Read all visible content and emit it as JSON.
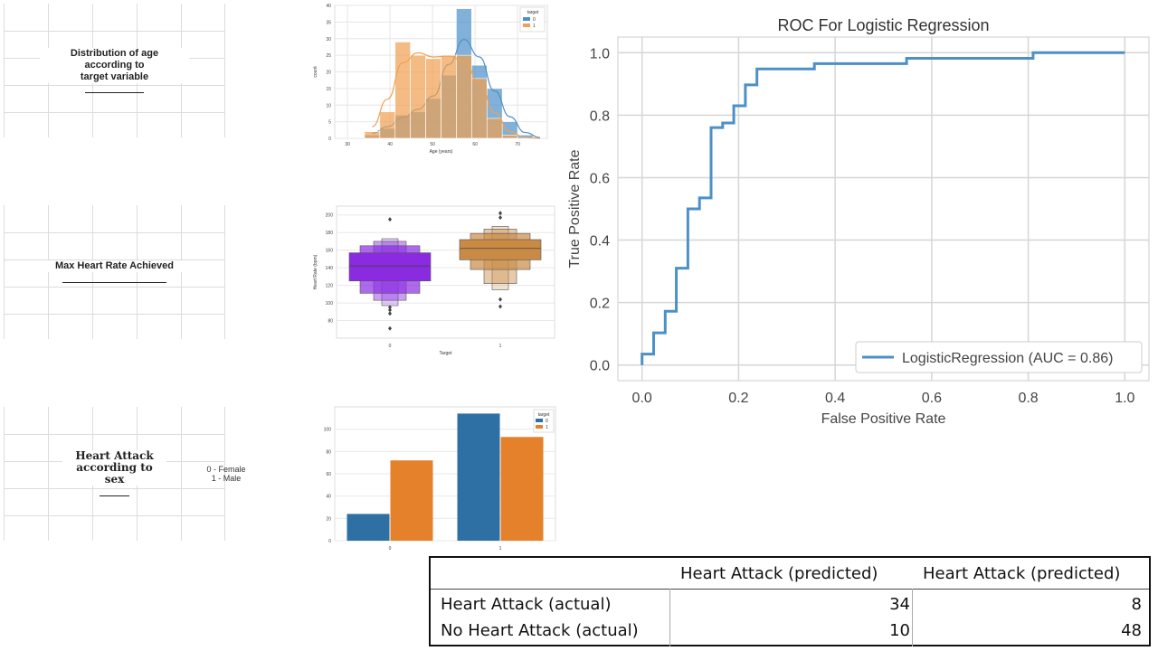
{
  "panels": {
    "age": {
      "title_lines": [
        "Distribution of age",
        "according to",
        "target variable"
      ]
    },
    "heart_rate": {
      "title": "Max Heart Rate Achieved"
    },
    "sex": {
      "title_lines": [
        "Heart Attack",
        "according to",
        "sex"
      ],
      "note_lines": [
        "0 - Female",
        "1 - Male"
      ]
    }
  },
  "chart_data": [
    {
      "type": "bar",
      "subtype": "histogram-with-kde",
      "xlabel": "Age (years)",
      "ylabel": "count",
      "xlim": [
        27,
        77
      ],
      "ylim": [
        0,
        40
      ],
      "xticks": [
        30,
        40,
        50,
        60,
        70
      ],
      "yticks": [
        0,
        5,
        10,
        15,
        20,
        25,
        30,
        35,
        40
      ],
      "bin_edges": [
        34,
        37.6,
        41.2,
        44.8,
        48.4,
        52,
        55.6,
        59.2,
        62.8,
        66.4,
        70,
        73.6,
        77
      ],
      "legend": {
        "title": "target",
        "labels": [
          "0",
          "1"
        ],
        "placement": "top-right"
      },
      "series": [
        {
          "name": "0",
          "color": "#4c90c8",
          "values": [
            1,
            3,
            7,
            8,
            12,
            19,
            39,
            22,
            15,
            5,
            1,
            0
          ]
        },
        {
          "name": "1",
          "color": "#f0a050",
          "values": [
            2,
            8,
            29,
            25,
            24,
            25,
            25,
            18,
            6,
            1,
            0,
            0
          ]
        }
      ]
    },
    {
      "type": "boxen",
      "xlabel": "Target",
      "ylabel": "Heart Rate (bpm)",
      "ylim": [
        60,
        210
      ],
      "yticks": [
        80,
        100,
        120,
        140,
        160,
        180,
        200
      ],
      "categories": [
        "0",
        "1"
      ],
      "series": [
        {
          "name": "0",
          "color": "#8a2be2",
          "boxes": [
            [
              125,
              157
            ],
            [
              111,
              165
            ],
            [
              103,
              170
            ],
            [
              97,
              173
            ]
          ],
          "median": 142,
          "outliers": [
            71,
            88,
            92,
            95,
            195
          ]
        },
        {
          "name": "1",
          "color": "#c98a45",
          "boxes": [
            [
              149,
              172
            ],
            [
              138,
              179
            ],
            [
              122,
              184
            ],
            [
              115,
              187
            ]
          ],
          "median": 162,
          "outliers": [
            96,
            104,
            197,
            202
          ]
        }
      ]
    },
    {
      "type": "bar",
      "xlabel": "",
      "ylabel": "",
      "ylim": [
        0,
        120
      ],
      "yticks": [
        0,
        20,
        40,
        60,
        80,
        100
      ],
      "categories": [
        "0",
        "1"
      ],
      "legend": {
        "title": "target",
        "labels": [
          "0",
          "1"
        ],
        "placement": "top-right"
      },
      "series": [
        {
          "name": "0",
          "color": "#2e70a4",
          "values": [
            24,
            114
          ]
        },
        {
          "name": "1",
          "color": "#e4812a",
          "values": [
            72,
            93
          ]
        }
      ]
    },
    {
      "type": "line",
      "subtype": "step",
      "title": "ROC For Logistic Regression",
      "xlabel": "False Positive Rate",
      "ylabel": "True Positive Rate",
      "xlim": [
        -0.05,
        1.05
      ],
      "ylim": [
        -0.05,
        1.05
      ],
      "xticks": [
        "0.0",
        "0.2",
        "0.4",
        "0.6",
        "0.8",
        "1.0"
      ],
      "yticks": [
        "0.0",
        "0.2",
        "0.4",
        "0.6",
        "0.8",
        "1.0"
      ],
      "grid": true,
      "legend": {
        "labels": [
          "LogisticRegression (AUC = 0.86)"
        ],
        "placement": "lower-right"
      },
      "series": [
        {
          "name": "LogisticRegression (AUC = 0.86)",
          "color": "#4c90c8",
          "x": [
            0,
            0,
            0.024,
            0.024,
            0.048,
            0.048,
            0.071,
            0.071,
            0.095,
            0.095,
            0.119,
            0.119,
            0.143,
            0.143,
            0.167,
            0.167,
            0.19,
            0.19,
            0.214,
            0.214,
            0.238,
            0.238,
            0.357,
            0.357,
            0.548,
            0.548,
            0.81,
            0.81,
            1.0
          ],
          "y": [
            0,
            0.035,
            0.035,
            0.103,
            0.103,
            0.172,
            0.172,
            0.31,
            0.31,
            0.5,
            0.5,
            0.535,
            0.535,
            0.76,
            0.76,
            0.775,
            0.775,
            0.83,
            0.83,
            0.897,
            0.897,
            0.948,
            0.948,
            0.965,
            0.965,
            0.982,
            0.982,
            1.0,
            1.0
          ]
        }
      ]
    }
  ],
  "confusion_matrix": {
    "headers": [
      "Heart Attack (predicted)",
      "Heart Attack (predicted)"
    ],
    "rows": [
      {
        "label": "Heart Attack (actual)",
        "values": [
          "34",
          "8"
        ]
      },
      {
        "label": "No Heart Attack (actual)",
        "values": [
          "10",
          "48"
        ]
      }
    ]
  }
}
